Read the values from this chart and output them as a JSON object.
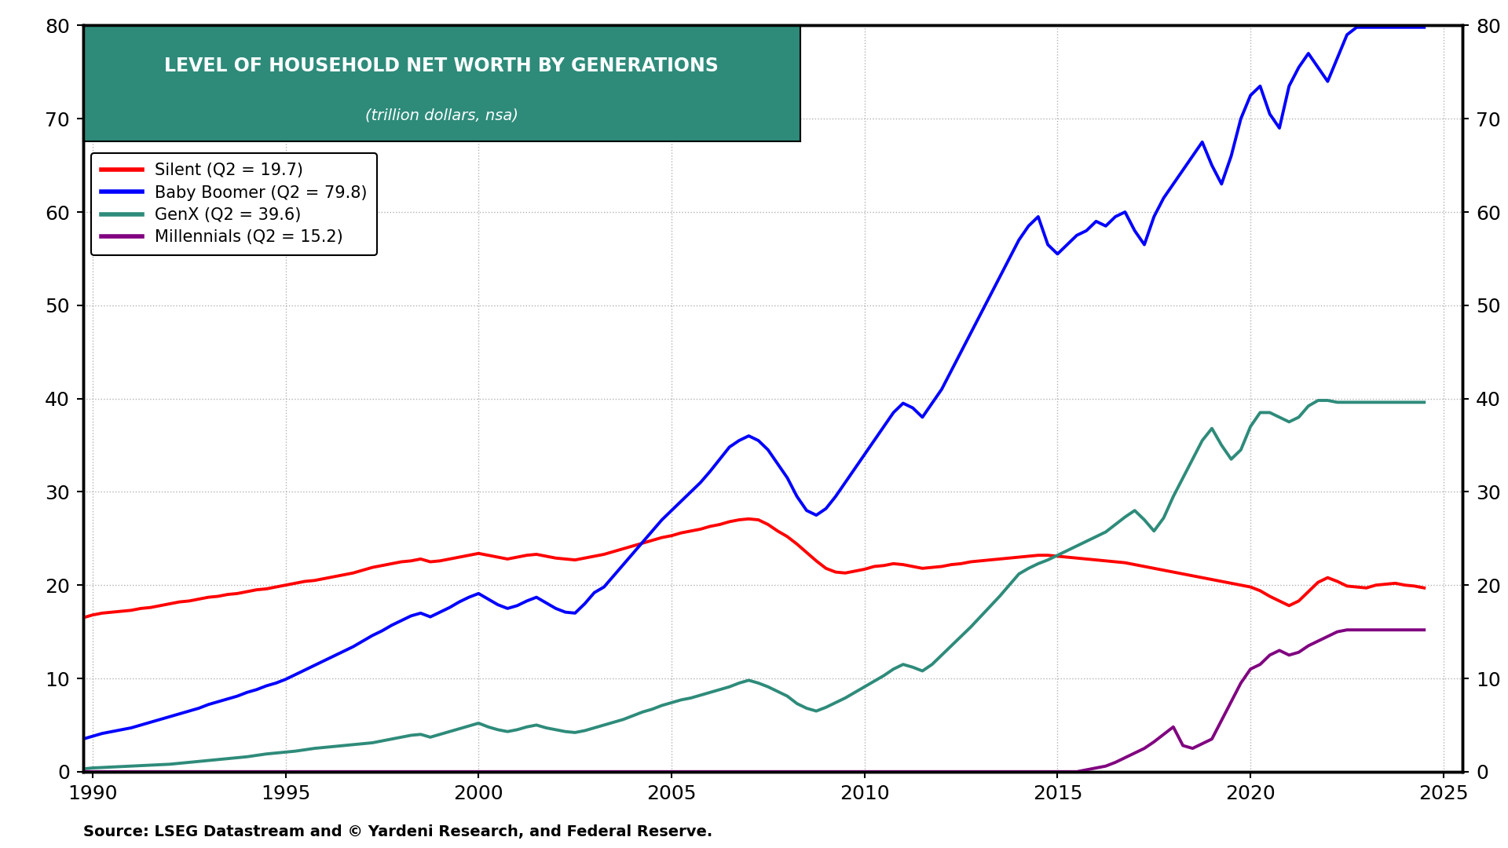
{
  "title_line1": "LEVEL OF HOUSEHOLD NET WORTH BY GENERATIONS",
  "title_line2": "(trillion dollars, nsa)",
  "title_bg_color": "#2e8b7a",
  "title_text_color": "#ffffff",
  "source_text": "Source: LSEG Datastream and © Yardeni Research, and Federal Reserve.",
  "background_color": "#ffffff",
  "grid_color": "#aaaaaa",
  "ylim": [
    0,
    80
  ],
  "yticks": [
    0,
    10,
    20,
    30,
    40,
    50,
    60,
    70,
    80
  ],
  "xlim_start": 1989.75,
  "xlim_end": 2025.5,
  "xticks": [
    1990,
    1995,
    2000,
    2005,
    2010,
    2015,
    2020,
    2025
  ],
  "legend_entries": [
    {
      "label": "Silent (Q2 = 19.7)",
      "color": "#ff0000"
    },
    {
      "label": "Baby Boomer (Q2 = 79.8)",
      "color": "#0000ff"
    },
    {
      "label": "GenX (Q2 = 39.6)",
      "color": "#2e8b7a"
    },
    {
      "label": "Millennials (Q2 = 15.2)",
      "color": "#800080"
    }
  ],
  "silent": {
    "color": "#ff0000",
    "x": [
      1989.75,
      1990.0,
      1990.25,
      1990.5,
      1990.75,
      1991.0,
      1991.25,
      1991.5,
      1991.75,
      1992.0,
      1992.25,
      1992.5,
      1992.75,
      1993.0,
      1993.25,
      1993.5,
      1993.75,
      1994.0,
      1994.25,
      1994.5,
      1994.75,
      1995.0,
      1995.25,
      1995.5,
      1995.75,
      1996.0,
      1996.25,
      1996.5,
      1996.75,
      1997.0,
      1997.25,
      1997.5,
      1997.75,
      1998.0,
      1998.25,
      1998.5,
      1998.75,
      1999.0,
      1999.25,
      1999.5,
      1999.75,
      2000.0,
      2000.25,
      2000.5,
      2000.75,
      2001.0,
      2001.25,
      2001.5,
      2001.75,
      2002.0,
      2002.25,
      2002.5,
      2002.75,
      2003.0,
      2003.25,
      2003.5,
      2003.75,
      2004.0,
      2004.25,
      2004.5,
      2004.75,
      2005.0,
      2005.25,
      2005.5,
      2005.75,
      2006.0,
      2006.25,
      2006.5,
      2006.75,
      2007.0,
      2007.25,
      2007.5,
      2007.75,
      2008.0,
      2008.25,
      2008.5,
      2008.75,
      2009.0,
      2009.25,
      2009.5,
      2009.75,
      2010.0,
      2010.25,
      2010.5,
      2010.75,
      2011.0,
      2011.25,
      2011.5,
      2011.75,
      2012.0,
      2012.25,
      2012.5,
      2012.75,
      2013.0,
      2013.25,
      2013.5,
      2013.75,
      2014.0,
      2014.25,
      2014.5,
      2014.75,
      2015.0,
      2015.25,
      2015.5,
      2015.75,
      2016.0,
      2016.25,
      2016.5,
      2016.75,
      2017.0,
      2017.25,
      2017.5,
      2017.75,
      2018.0,
      2018.25,
      2018.5,
      2018.75,
      2019.0,
      2019.25,
      2019.5,
      2019.75,
      2020.0,
      2020.25,
      2020.5,
      2020.75,
      2021.0,
      2021.25,
      2021.5,
      2021.75,
      2022.0,
      2022.25,
      2022.5,
      2022.75,
      2023.0,
      2023.25,
      2023.5,
      2023.75,
      2024.0,
      2024.25,
      2024.5
    ],
    "y": [
      16.5,
      16.8,
      17.0,
      17.1,
      17.2,
      17.3,
      17.5,
      17.6,
      17.8,
      18.0,
      18.2,
      18.3,
      18.5,
      18.7,
      18.8,
      19.0,
      19.1,
      19.3,
      19.5,
      19.6,
      19.8,
      20.0,
      20.2,
      20.4,
      20.5,
      20.7,
      20.9,
      21.1,
      21.3,
      21.6,
      21.9,
      22.1,
      22.3,
      22.5,
      22.6,
      22.8,
      22.5,
      22.6,
      22.8,
      23.0,
      23.2,
      23.4,
      23.2,
      23.0,
      22.8,
      23.0,
      23.2,
      23.3,
      23.1,
      22.9,
      22.8,
      22.7,
      22.9,
      23.1,
      23.3,
      23.6,
      23.9,
      24.2,
      24.5,
      24.8,
      25.1,
      25.3,
      25.6,
      25.8,
      26.0,
      26.3,
      26.5,
      26.8,
      27.0,
      27.1,
      27.0,
      26.5,
      25.8,
      25.2,
      24.4,
      23.5,
      22.6,
      21.8,
      21.4,
      21.3,
      21.5,
      21.7,
      22.0,
      22.1,
      22.3,
      22.2,
      22.0,
      21.8,
      21.9,
      22.0,
      22.2,
      22.3,
      22.5,
      22.6,
      22.7,
      22.8,
      22.9,
      23.0,
      23.1,
      23.2,
      23.2,
      23.1,
      23.0,
      22.9,
      22.8,
      22.7,
      22.6,
      22.5,
      22.4,
      22.2,
      22.0,
      21.8,
      21.6,
      21.4,
      21.2,
      21.0,
      20.8,
      20.6,
      20.4,
      20.2,
      20.0,
      19.8,
      19.4,
      18.8,
      18.3,
      17.8,
      18.3,
      19.3,
      20.3,
      20.8,
      20.4,
      19.9,
      19.8,
      19.7,
      20.0,
      20.1,
      20.2,
      20.0,
      19.9,
      19.7
    ]
  },
  "babyboomer": {
    "color": "#0000ff",
    "x": [
      1989.75,
      1990.0,
      1990.25,
      1990.5,
      1990.75,
      1991.0,
      1991.25,
      1991.5,
      1991.75,
      1992.0,
      1992.25,
      1992.5,
      1992.75,
      1993.0,
      1993.25,
      1993.5,
      1993.75,
      1994.0,
      1994.25,
      1994.5,
      1994.75,
      1995.0,
      1995.25,
      1995.5,
      1995.75,
      1996.0,
      1996.25,
      1996.5,
      1996.75,
      1997.0,
      1997.25,
      1997.5,
      1997.75,
      1998.0,
      1998.25,
      1998.5,
      1998.75,
      1999.0,
      1999.25,
      1999.5,
      1999.75,
      2000.0,
      2000.25,
      2000.5,
      2000.75,
      2001.0,
      2001.25,
      2001.5,
      2001.75,
      2002.0,
      2002.25,
      2002.5,
      2002.75,
      2003.0,
      2003.25,
      2003.5,
      2003.75,
      2004.0,
      2004.25,
      2004.5,
      2004.75,
      2005.0,
      2005.25,
      2005.5,
      2005.75,
      2006.0,
      2006.25,
      2006.5,
      2006.75,
      2007.0,
      2007.25,
      2007.5,
      2007.75,
      2008.0,
      2008.25,
      2008.5,
      2008.75,
      2009.0,
      2009.25,
      2009.5,
      2009.75,
      2010.0,
      2010.25,
      2010.5,
      2010.75,
      2011.0,
      2011.25,
      2011.5,
      2011.75,
      2012.0,
      2012.25,
      2012.5,
      2012.75,
      2013.0,
      2013.25,
      2013.5,
      2013.75,
      2014.0,
      2014.25,
      2014.5,
      2014.75,
      2015.0,
      2015.25,
      2015.5,
      2015.75,
      2016.0,
      2016.25,
      2016.5,
      2016.75,
      2017.0,
      2017.25,
      2017.5,
      2017.75,
      2018.0,
      2018.25,
      2018.5,
      2018.75,
      2019.0,
      2019.25,
      2019.5,
      2019.75,
      2020.0,
      2020.25,
      2020.5,
      2020.75,
      2021.0,
      2021.25,
      2021.5,
      2021.75,
      2022.0,
      2022.25,
      2022.5,
      2022.75,
      2023.0,
      2023.25,
      2023.5,
      2023.75,
      2024.0,
      2024.25,
      2024.5
    ],
    "y": [
      3.5,
      3.8,
      4.1,
      4.3,
      4.5,
      4.7,
      5.0,
      5.3,
      5.6,
      5.9,
      6.2,
      6.5,
      6.8,
      7.2,
      7.5,
      7.8,
      8.1,
      8.5,
      8.8,
      9.2,
      9.5,
      9.9,
      10.4,
      10.9,
      11.4,
      11.9,
      12.4,
      12.9,
      13.4,
      14.0,
      14.6,
      15.1,
      15.7,
      16.2,
      16.7,
      17.0,
      16.6,
      17.1,
      17.6,
      18.2,
      18.7,
      19.1,
      18.5,
      17.9,
      17.5,
      17.8,
      18.3,
      18.7,
      18.1,
      17.5,
      17.1,
      17.0,
      18.0,
      19.2,
      19.8,
      21.0,
      22.2,
      23.4,
      24.6,
      25.8,
      27.0,
      28.0,
      29.0,
      30.0,
      31.0,
      32.2,
      33.5,
      34.8,
      35.5,
      36.0,
      35.5,
      34.5,
      33.0,
      31.5,
      29.5,
      28.0,
      27.5,
      28.2,
      29.5,
      31.0,
      32.5,
      34.0,
      35.5,
      37.0,
      38.5,
      39.5,
      39.0,
      38.0,
      39.5,
      41.0,
      43.0,
      45.0,
      47.0,
      49.0,
      51.0,
      53.0,
      55.0,
      57.0,
      58.5,
      59.5,
      56.5,
      55.5,
      56.5,
      57.5,
      58.0,
      59.0,
      58.5,
      59.5,
      60.0,
      58.0,
      56.5,
      59.5,
      61.5,
      63.0,
      64.5,
      66.0,
      67.5,
      65.0,
      63.0,
      66.0,
      70.0,
      72.5,
      73.5,
      70.5,
      69.0,
      73.5,
      75.5,
      77.0,
      75.5,
      74.0,
      76.5,
      79.0,
      79.8,
      79.8,
      79.8,
      79.8,
      79.8,
      79.8,
      79.8,
      79.8
    ]
  },
  "genx": {
    "color": "#2e8b7a",
    "x": [
      1989.75,
      1990.0,
      1990.25,
      1990.5,
      1990.75,
      1991.0,
      1991.25,
      1991.5,
      1991.75,
      1992.0,
      1992.25,
      1992.5,
      1992.75,
      1993.0,
      1993.25,
      1993.5,
      1993.75,
      1994.0,
      1994.25,
      1994.5,
      1994.75,
      1995.0,
      1995.25,
      1995.5,
      1995.75,
      1996.0,
      1996.25,
      1996.5,
      1996.75,
      1997.0,
      1997.25,
      1997.5,
      1997.75,
      1998.0,
      1998.25,
      1998.5,
      1998.75,
      1999.0,
      1999.25,
      1999.5,
      1999.75,
      2000.0,
      2000.25,
      2000.5,
      2000.75,
      2001.0,
      2001.25,
      2001.5,
      2001.75,
      2002.0,
      2002.25,
      2002.5,
      2002.75,
      2003.0,
      2003.25,
      2003.5,
      2003.75,
      2004.0,
      2004.25,
      2004.5,
      2004.75,
      2005.0,
      2005.25,
      2005.5,
      2005.75,
      2006.0,
      2006.25,
      2006.5,
      2006.75,
      2007.0,
      2007.25,
      2007.5,
      2007.75,
      2008.0,
      2008.25,
      2008.5,
      2008.75,
      2009.0,
      2009.25,
      2009.5,
      2009.75,
      2010.0,
      2010.25,
      2010.5,
      2010.75,
      2011.0,
      2011.25,
      2011.5,
      2011.75,
      2012.0,
      2012.25,
      2012.5,
      2012.75,
      2013.0,
      2013.25,
      2013.5,
      2013.75,
      2014.0,
      2014.25,
      2014.5,
      2014.75,
      2015.0,
      2015.25,
      2015.5,
      2015.75,
      2016.0,
      2016.25,
      2016.5,
      2016.75,
      2017.0,
      2017.25,
      2017.5,
      2017.75,
      2018.0,
      2018.25,
      2018.5,
      2018.75,
      2019.0,
      2019.25,
      2019.5,
      2019.75,
      2020.0,
      2020.25,
      2020.5,
      2020.75,
      2021.0,
      2021.25,
      2021.5,
      2021.75,
      2022.0,
      2022.25,
      2022.5,
      2022.75,
      2023.0,
      2023.25,
      2023.5,
      2023.75,
      2024.0,
      2024.25,
      2024.5
    ],
    "y": [
      0.3,
      0.4,
      0.45,
      0.5,
      0.55,
      0.6,
      0.65,
      0.7,
      0.75,
      0.8,
      0.9,
      1.0,
      1.1,
      1.2,
      1.3,
      1.4,
      1.5,
      1.6,
      1.75,
      1.9,
      2.0,
      2.1,
      2.2,
      2.35,
      2.5,
      2.6,
      2.7,
      2.8,
      2.9,
      3.0,
      3.1,
      3.3,
      3.5,
      3.7,
      3.9,
      4.0,
      3.7,
      4.0,
      4.3,
      4.6,
      4.9,
      5.2,
      4.8,
      4.5,
      4.3,
      4.5,
      4.8,
      5.0,
      4.7,
      4.5,
      4.3,
      4.2,
      4.4,
      4.7,
      5.0,
      5.3,
      5.6,
      6.0,
      6.4,
      6.7,
      7.1,
      7.4,
      7.7,
      7.9,
      8.2,
      8.5,
      8.8,
      9.1,
      9.5,
      9.8,
      9.5,
      9.1,
      8.6,
      8.1,
      7.3,
      6.8,
      6.5,
      6.9,
      7.4,
      7.9,
      8.5,
      9.1,
      9.7,
      10.3,
      11.0,
      11.5,
      11.2,
      10.8,
      11.5,
      12.5,
      13.5,
      14.5,
      15.5,
      16.6,
      17.7,
      18.8,
      20.0,
      21.2,
      21.8,
      22.3,
      22.7,
      23.2,
      23.7,
      24.2,
      24.7,
      25.2,
      25.7,
      26.5,
      27.3,
      28.0,
      27.0,
      25.8,
      27.2,
      29.5,
      31.5,
      33.5,
      35.5,
      36.8,
      35.0,
      33.5,
      34.5,
      37.0,
      38.5,
      38.5,
      38.0,
      37.5,
      38.0,
      39.2,
      39.8,
      39.8,
      39.6,
      39.6,
      39.6,
      39.6,
      39.6,
      39.6,
      39.6,
      39.6,
      39.6,
      39.6
    ]
  },
  "millennials": {
    "color": "#800080",
    "x": [
      1989.75,
      1990.0,
      1990.25,
      1990.5,
      1990.75,
      1991.0,
      1991.25,
      1991.5,
      1991.75,
      1992.0,
      1992.25,
      1992.5,
      1992.75,
      1993.0,
      1993.25,
      1993.5,
      1993.75,
      1994.0,
      1994.25,
      1994.5,
      1994.75,
      1995.0,
      1995.25,
      1995.5,
      1995.75,
      1996.0,
      1996.25,
      1996.5,
      1996.75,
      1997.0,
      1997.25,
      1997.5,
      1997.75,
      1998.0,
      1998.25,
      1998.5,
      1998.75,
      1999.0,
      1999.25,
      1999.5,
      1999.75,
      2000.0,
      2000.25,
      2000.5,
      2000.75,
      2001.0,
      2001.25,
      2001.5,
      2001.75,
      2002.0,
      2002.25,
      2002.5,
      2002.75,
      2003.0,
      2003.25,
      2003.5,
      2003.75,
      2004.0,
      2004.25,
      2004.5,
      2004.75,
      2005.0,
      2005.25,
      2005.5,
      2005.75,
      2006.0,
      2006.25,
      2006.5,
      2006.75,
      2007.0,
      2007.25,
      2007.5,
      2007.75,
      2008.0,
      2008.25,
      2008.5,
      2008.75,
      2009.0,
      2009.25,
      2009.5,
      2009.75,
      2010.0,
      2010.25,
      2010.5,
      2010.75,
      2011.0,
      2011.25,
      2011.5,
      2011.75,
      2012.0,
      2012.25,
      2012.5,
      2012.75,
      2013.0,
      2013.25,
      2013.5,
      2013.75,
      2014.0,
      2014.25,
      2014.5,
      2014.75,
      2015.0,
      2015.25,
      2015.5,
      2015.75,
      2016.0,
      2016.25,
      2016.5,
      2016.75,
      2017.0,
      2017.25,
      2017.5,
      2017.75,
      2018.0,
      2018.25,
      2018.5,
      2018.75,
      2019.0,
      2019.25,
      2019.5,
      2019.75,
      2020.0,
      2020.25,
      2020.5,
      2020.75,
      2021.0,
      2021.25,
      2021.5,
      2021.75,
      2022.0,
      2022.25,
      2022.5,
      2022.75,
      2023.0,
      2023.25,
      2023.5,
      2023.75,
      2024.0,
      2024.25,
      2024.5
    ],
    "y": [
      0.0,
      0.0,
      0.0,
      0.0,
      0.0,
      0.0,
      0.0,
      0.0,
      0.0,
      0.0,
      0.0,
      0.0,
      0.0,
      0.0,
      0.0,
      0.0,
      0.0,
      0.0,
      0.0,
      0.0,
      0.0,
      0.0,
      0.0,
      0.0,
      0.0,
      0.0,
      0.0,
      0.0,
      0.0,
      0.0,
      0.0,
      0.0,
      0.0,
      0.0,
      0.0,
      0.0,
      0.0,
      0.0,
      0.0,
      0.0,
      0.0,
      0.0,
      0.0,
      0.0,
      0.0,
      0.0,
      0.0,
      0.0,
      0.0,
      0.0,
      0.0,
      0.0,
      0.0,
      0.0,
      0.0,
      0.0,
      0.0,
      0.0,
      0.0,
      0.0,
      0.0,
      0.0,
      0.0,
      0.0,
      0.0,
      0.0,
      0.0,
      0.0,
      0.0,
      0.0,
      0.0,
      0.0,
      0.0,
      0.0,
      0.0,
      0.0,
      0.0,
      0.0,
      0.0,
      0.0,
      0.0,
      0.0,
      0.0,
      0.0,
      0.0,
      0.0,
      0.0,
      0.0,
      0.0,
      0.0,
      0.0,
      0.0,
      0.0,
      0.0,
      0.0,
      0.0,
      0.0,
      0.0,
      0.0,
      0.0,
      0.0,
      0.0,
      0.0,
      0.0,
      0.2,
      0.4,
      0.6,
      1.0,
      1.5,
      2.0,
      2.5,
      3.2,
      4.0,
      4.8,
      2.8,
      2.5,
      3.0,
      3.5,
      5.5,
      7.5,
      9.5,
      11.0,
      11.5,
      12.5,
      13.0,
      12.5,
      12.8,
      13.5,
      14.0,
      14.5,
      15.0,
      15.2,
      15.2,
      15.2,
      15.2,
      15.2,
      15.2,
      15.2,
      15.2,
      15.2
    ]
  }
}
